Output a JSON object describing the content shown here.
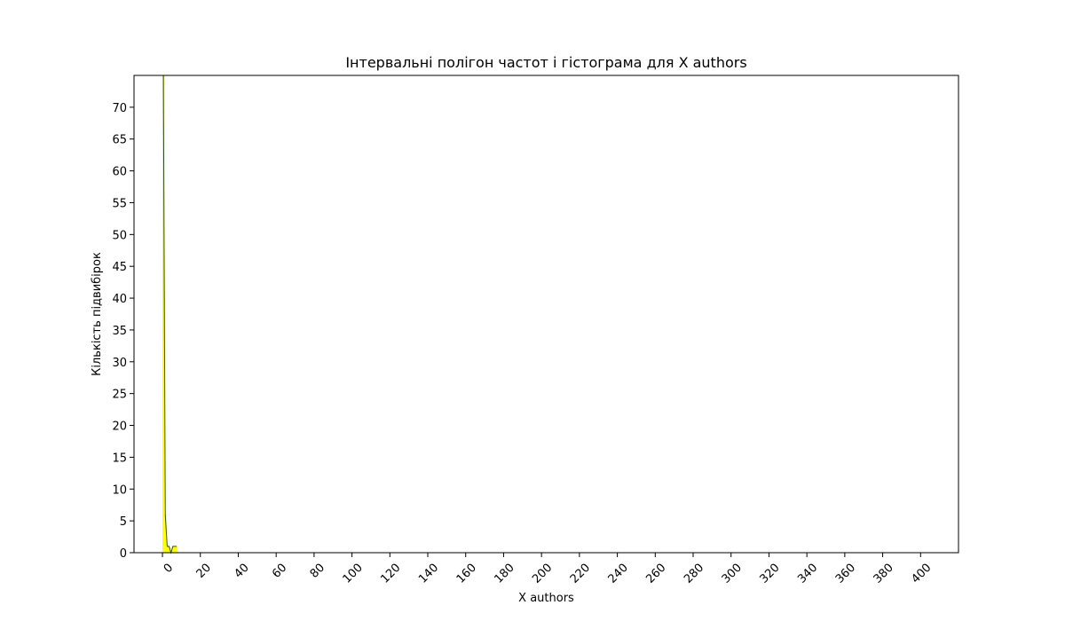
{
  "chart_data": {
    "type": "bar",
    "title": "Інтервальні полігон частот і гістограма для X authors",
    "xlabel": "X authors",
    "ylabel": "Кількість підвибірок",
    "xlim": [
      -15,
      420
    ],
    "ylim": [
      0,
      75
    ],
    "xticks": [
      0,
      20,
      40,
      60,
      80,
      100,
      120,
      140,
      160,
      180,
      200,
      220,
      240,
      260,
      280,
      300,
      320,
      340,
      360,
      380,
      400
    ],
    "yticks": [
      0,
      5,
      10,
      15,
      20,
      25,
      30,
      35,
      40,
      45,
      50,
      55,
      60,
      65,
      70
    ],
    "grid": false,
    "bins": [
      {
        "x0": 0,
        "x1": 1,
        "value": 75
      },
      {
        "x0": 1,
        "x1": 2,
        "value": 6
      },
      {
        "x0": 2,
        "x1": 3,
        "value": 1
      },
      {
        "x0": 3,
        "x1": 4,
        "value": 1
      },
      {
        "x0": 4,
        "x1": 5,
        "value": 0
      },
      {
        "x0": 5,
        "x1": 6,
        "value": 1
      },
      {
        "x0": 6,
        "x1": 7,
        "value": 1
      },
      {
        "x0": 7,
        "x1": 8,
        "value": 1
      }
    ],
    "polygon": {
      "x": [
        0.5,
        1.5,
        2.5,
        3.5,
        4.5,
        5.5,
        6.5,
        7.5
      ],
      "y": [
        75,
        6,
        1,
        1,
        0,
        1,
        1,
        1
      ]
    },
    "colors": {
      "bars": "#ffff00",
      "polygon": "#2f4f2f"
    }
  }
}
